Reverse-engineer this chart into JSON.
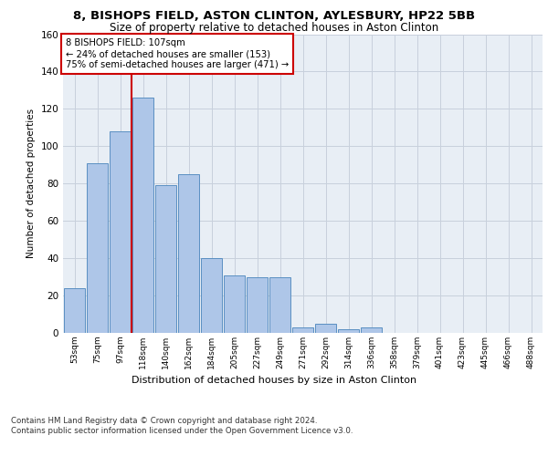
{
  "title1": "8, BISHOPS FIELD, ASTON CLINTON, AYLESBURY, HP22 5BB",
  "title2": "Size of property relative to detached houses in Aston Clinton",
  "xlabel": "Distribution of detached houses by size in Aston Clinton",
  "ylabel": "Number of detached properties",
  "categories": [
    "53sqm",
    "75sqm",
    "97sqm",
    "118sqm",
    "140sqm",
    "162sqm",
    "184sqm",
    "205sqm",
    "227sqm",
    "249sqm",
    "271sqm",
    "292sqm",
    "314sqm",
    "336sqm",
    "358sqm",
    "379sqm",
    "401sqm",
    "423sqm",
    "445sqm",
    "466sqm",
    "488sqm"
  ],
  "values": [
    24,
    91,
    108,
    126,
    79,
    85,
    40,
    31,
    30,
    30,
    3,
    5,
    2,
    3,
    0,
    0,
    0,
    0,
    0,
    0,
    0
  ],
  "bar_color": "#aec6e8",
  "bar_edge_color": "#5a8fc2",
  "annotation_box_text": "8 BISHOPS FIELD: 107sqm\n← 24% of detached houses are smaller (153)\n75% of semi-detached houses are larger (471) →",
  "annotation_box_color": "#ffffff",
  "annotation_box_edge_color": "#cc0000",
  "vline_color": "#cc0000",
  "vline_x": 2.5,
  "ylim": [
    0,
    160
  ],
  "yticks": [
    0,
    20,
    40,
    60,
    80,
    100,
    120,
    140,
    160
  ],
  "grid_color": "#c8d0dc",
  "bg_color": "#e8eef5",
  "footer": "Contains HM Land Registry data © Crown copyright and database right 2024.\nContains public sector information licensed under the Open Government Licence v3.0."
}
